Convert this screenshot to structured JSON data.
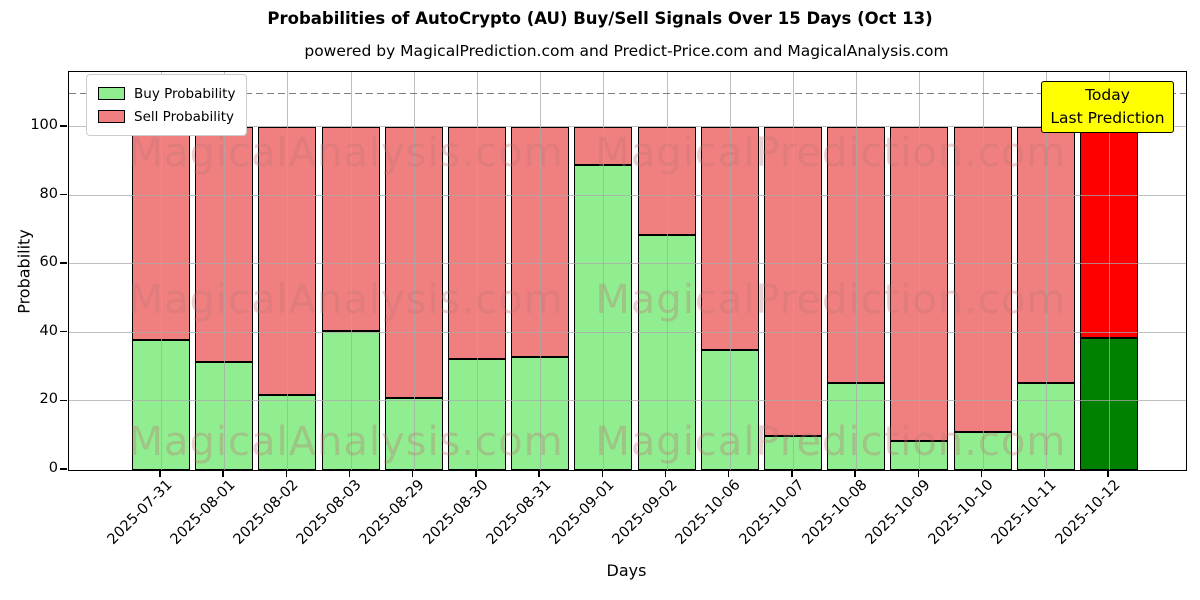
{
  "title": "Probabilities of AutoCrypto (AU) Buy/Sell Signals Over 15 Days (Oct 13)",
  "subtitle": "powered by MagicalPrediction.com and Predict-Price.com and MagicalAnalysis.com",
  "axes": {
    "x_label": "Days",
    "y_label": "Probability",
    "y_ticks": [
      0,
      20,
      40,
      60,
      80,
      100
    ],
    "y_max": 116,
    "grid": true
  },
  "legend": {
    "position": "upper-left",
    "items": [
      {
        "label": "Buy Probability",
        "color": "#90ee90"
      },
      {
        "label": "Sell Probability",
        "color": "#f08080"
      }
    ]
  },
  "annotation": {
    "lines": [
      "Today",
      "Last Prediction"
    ],
    "bg_color": "#ffff00",
    "border_color": "#000000"
  },
  "reference_line": {
    "y": 110,
    "style": "dashed",
    "color": "#7f7f7f"
  },
  "watermarks": {
    "texts": [
      "MagicalAnalysis.com",
      "MagicalPrediction.com"
    ],
    "color": "rgba(190,115,115,0.33)"
  },
  "colors": {
    "buy": "#90ee90",
    "sell": "#f08080",
    "today_buy": "#008000",
    "today_sell": "#ff0000",
    "bar_edge": "#000000"
  },
  "chart_data": {
    "type": "bar",
    "stacked": true,
    "categories": [
      "2025-07-31",
      "2025-08-01",
      "2025-08-02",
      "2025-08-03",
      "2025-08-29",
      "2025-08-30",
      "2025-08-31",
      "2025-09-01",
      "2025-09-02",
      "2025-10-06",
      "2025-10-07",
      "2025-10-08",
      "2025-10-09",
      "2025-10-10",
      "2025-10-11",
      "2025-10-12"
    ],
    "series": [
      {
        "name": "Buy Probability",
        "values": [
          38,
          31.5,
          22,
          40.5,
          21,
          32.5,
          33,
          89,
          68.5,
          35,
          10,
          25.5,
          8.5,
          11,
          25.5,
          38.5
        ]
      },
      {
        "name": "Sell Probability",
        "values": [
          62,
          68.5,
          78,
          59.5,
          79,
          67.5,
          67,
          11,
          31.5,
          65,
          90,
          74.5,
          91.5,
          89,
          74.5,
          61.5
        ]
      }
    ],
    "highlight_last_bar": true,
    "title": "Probabilities of AutoCrypto (AU) Buy/Sell Signals Over 15 Days (Oct 13)",
    "xlabel": "Days",
    "ylabel": "Probability",
    "ylim": [
      0,
      116
    ]
  }
}
